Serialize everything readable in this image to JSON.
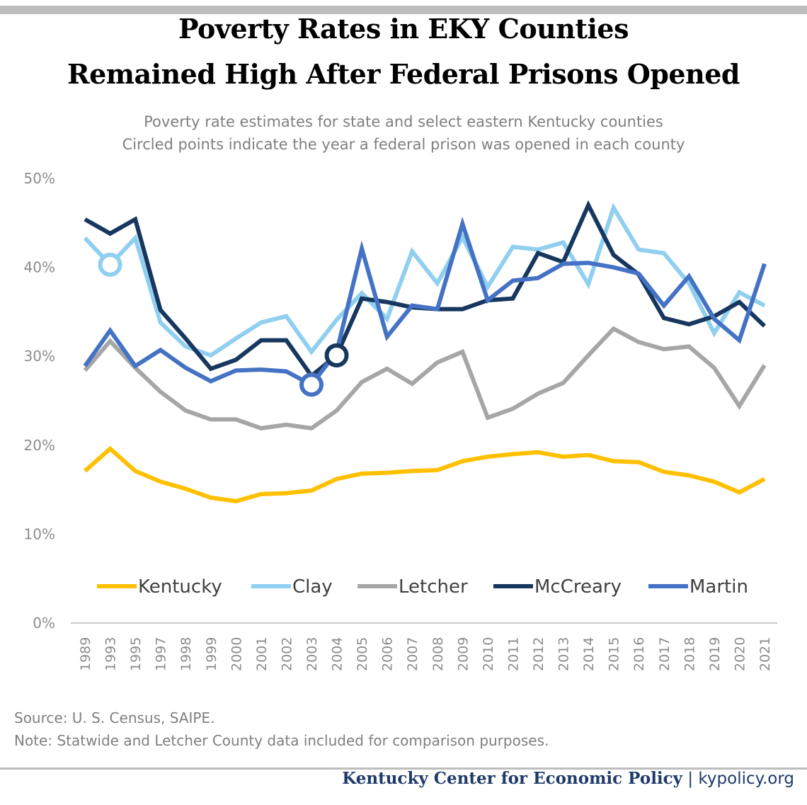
{
  "title_lines": [
    "Poverty Rates in EKY Counties",
    "Remained High After Federal Prisons Opened"
  ],
  "subtitle_lines": [
    "Poverty rate estimates for state and select eastern Kentucky counties",
    "Circled points indicate the year a federal prison was opened in each county"
  ],
  "source": "Source: U. S. Census, SAIPE.",
  "note": "Note: Statwide and Letcher County data included for comparison purposes.",
  "footer": {
    "org": "Kentucky Center for Economic Policy",
    "separator": " | ",
    "site": "kypolicy.org"
  },
  "chart_data": {
    "type": "line",
    "ylim": [
      0,
      50
    ],
    "yticks": [
      "0%",
      "10%",
      "20%",
      "30%",
      "40%",
      "50%"
    ],
    "grid": false,
    "legend_placement": "bottom-inside",
    "categories": [
      "1989",
      "1993",
      "1995",
      "1997",
      "1998",
      "1999",
      "2000",
      "2001",
      "2002",
      "2003",
      "2004",
      "2005",
      "2006",
      "2007",
      "2008",
      "2009",
      "2010",
      "2011",
      "2012",
      "2013",
      "2014",
      "2015",
      "2016",
      "2017",
      "2018",
      "2019",
      "2020",
      "2021"
    ],
    "series": [
      {
        "name": "Kentucky",
        "color": "#ffc000",
        "values": [
          17.1,
          19.6,
          17.1,
          15.9,
          15.1,
          14.1,
          13.7,
          14.5,
          14.6,
          14.9,
          16.2,
          16.8,
          16.9,
          17.1,
          17.2,
          18.2,
          18.7,
          19.0,
          19.2,
          18.7,
          18.9,
          18.2,
          18.1,
          17.0,
          16.6,
          15.9,
          14.7,
          16.2
        ]
      },
      {
        "name": "Clay",
        "color": "#90cff0",
        "circled": "1993",
        "values": [
          43.3,
          40.3,
          43.3,
          33.8,
          31.1,
          30.1,
          32.0,
          33.8,
          34.5,
          30.5,
          34.1,
          37.1,
          34.2,
          41.8,
          38.2,
          43.4,
          37.8,
          42.3,
          42.0,
          42.8,
          38.1,
          46.7,
          42.0,
          41.6,
          38.2,
          32.6,
          37.2,
          35.7
        ]
      },
      {
        "name": "Letcher",
        "color": "#a6a6a6",
        "values": [
          28.4,
          31.7,
          28.7,
          26.0,
          23.9,
          22.9,
          22.9,
          21.9,
          22.3,
          21.9,
          23.9,
          27.1,
          28.6,
          26.9,
          29.3,
          30.5,
          23.1,
          24.1,
          25.8,
          27.0,
          30.1,
          33.1,
          31.6,
          30.8,
          31.1,
          28.7,
          24.4,
          29.0
        ]
      },
      {
        "name": "McCreary",
        "color": "#17375e",
        "circled": "2004",
        "values": [
          45.4,
          43.8,
          45.4,
          35.2,
          32.0,
          28.6,
          29.6,
          31.8,
          31.8,
          27.8,
          30.1,
          36.5,
          36.1,
          35.5,
          35.3,
          35.3,
          36.3,
          36.5,
          41.6,
          40.6,
          47.0,
          41.4,
          39.2,
          34.3,
          33.6,
          34.5,
          36.1,
          33.4
        ]
      },
      {
        "name": "Martin",
        "color": "#4472c4",
        "circled": "2003",
        "values": [
          28.9,
          32.9,
          28.9,
          30.7,
          28.7,
          27.2,
          28.4,
          28.5,
          28.3,
          26.8,
          30.5,
          42.1,
          32.2,
          35.7,
          35.3,
          44.9,
          36.3,
          38.5,
          38.8,
          40.4,
          40.5,
          40.0,
          39.3,
          35.7,
          39.0,
          34.2,
          31.8,
          40.4
        ]
      }
    ]
  }
}
